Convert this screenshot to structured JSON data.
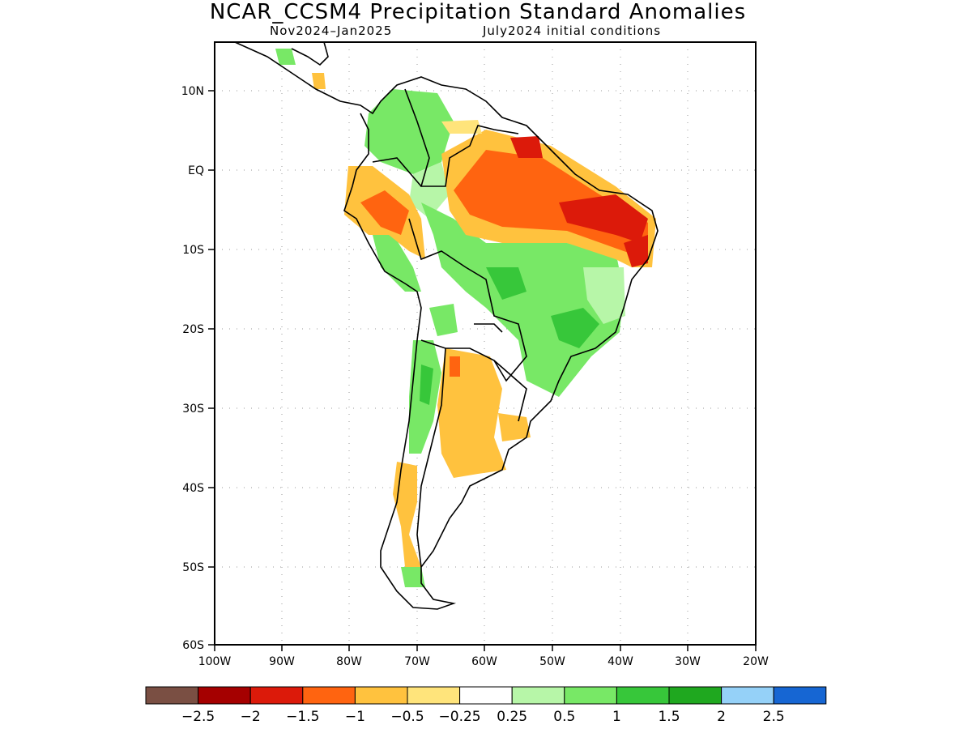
{
  "title": "NCAR_CCSM4 Precipitation Standard Anomalies",
  "subtitle_left": "Nov2024–Jan2025",
  "subtitle_right": "July2024 initial conditions",
  "map": {
    "lon_range": [
      -100,
      -20
    ],
    "lat_range": [
      -60,
      15
    ],
    "grid": "dotted",
    "x_ticks": [
      "100W",
      "90W",
      "80W",
      "70W",
      "60W",
      "50W",
      "40W",
      "30W",
      "20W"
    ],
    "y_ticks": [
      "10N",
      "EQ",
      "10S",
      "20S",
      "30S",
      "40S",
      "50S",
      "60S"
    ]
  },
  "legend": {
    "colors": [
      "#7a4f43",
      "#a50000",
      "#dc1a0a",
      "#ff6410",
      "#ffc23e",
      "#ffe47b",
      "#ffffff",
      "#b7f6a8",
      "#78e866",
      "#37c73a",
      "#1fa81f",
      "#95d1f8",
      "#1666d3"
    ],
    "labels": [
      "−2.5",
      "−2",
      "−1.5",
      "−1",
      "−0.5",
      "−0.25",
      "0.25",
      "0.5",
      "1",
      "1.5",
      "2",
      "2.5"
    ]
  }
}
